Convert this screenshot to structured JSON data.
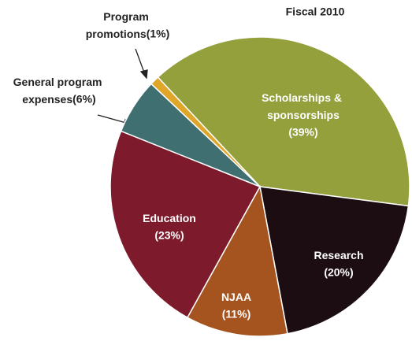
{
  "chart_data": {
    "type": "pie",
    "title": "Fiscal 2010",
    "categories": [
      "Scholarships & sponsorships",
      "Research",
      "NJAA",
      "Education",
      "General program expenses",
      "Program promotions"
    ],
    "values": [
      39,
      20,
      11,
      23,
      6,
      1
    ],
    "value_labels": [
      "(39%)",
      "(20%)",
      "(11%)",
      "(23%)",
      "(6%)",
      "(1%)"
    ],
    "colors": [
      "#94a03c",
      "#1c0d12",
      "#a6541f",
      "#7d1a2b",
      "#3f6f70",
      "#e0a62a"
    ]
  }
}
